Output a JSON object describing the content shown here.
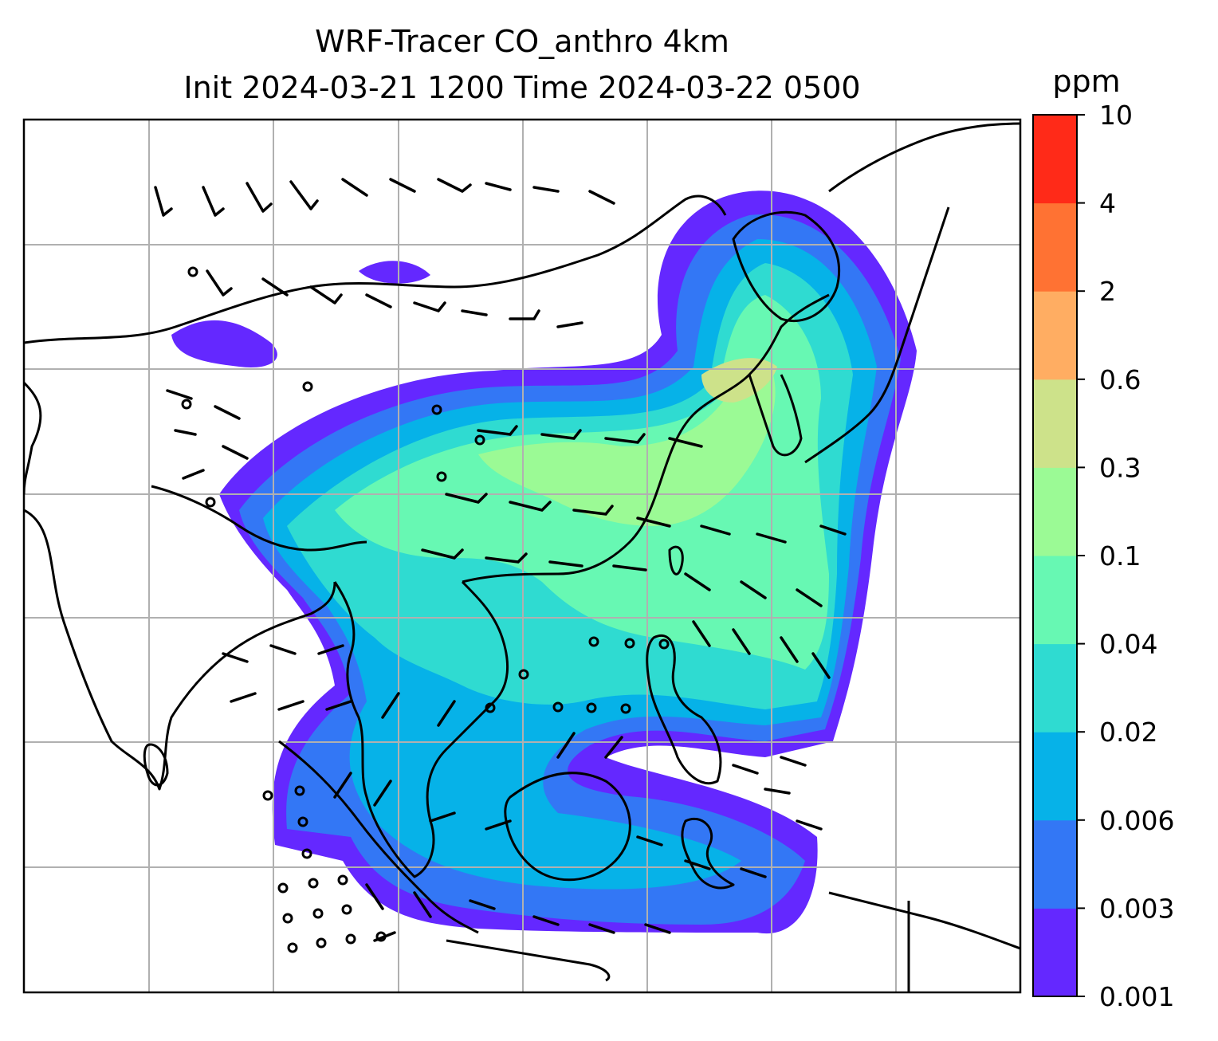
{
  "title": {
    "line1": "WRF-Tracer CO_anthro 4km",
    "line2": "Init 2024-03-21 1200 Time 2024-03-22 0500"
  },
  "colorbar": {
    "unit": "ppm",
    "levels": [
      "0.001",
      "0.003",
      "0.006",
      "0.02",
      "0.04",
      "0.1",
      "0.3",
      "0.6",
      "2",
      "4",
      "10"
    ],
    "colors": [
      "#6428ff",
      "#3377f5",
      "#06b2e8",
      "#2fdbd1",
      "#67f8b3",
      "#9bfa95",
      "#cde28a",
      "#ffad62",
      "#ff7233",
      "#ff2a18"
    ]
  },
  "map": {
    "gridlines": true,
    "land_outline_color": "#000000",
    "wind_barbs": true,
    "tracer": "CO_anthro"
  }
}
